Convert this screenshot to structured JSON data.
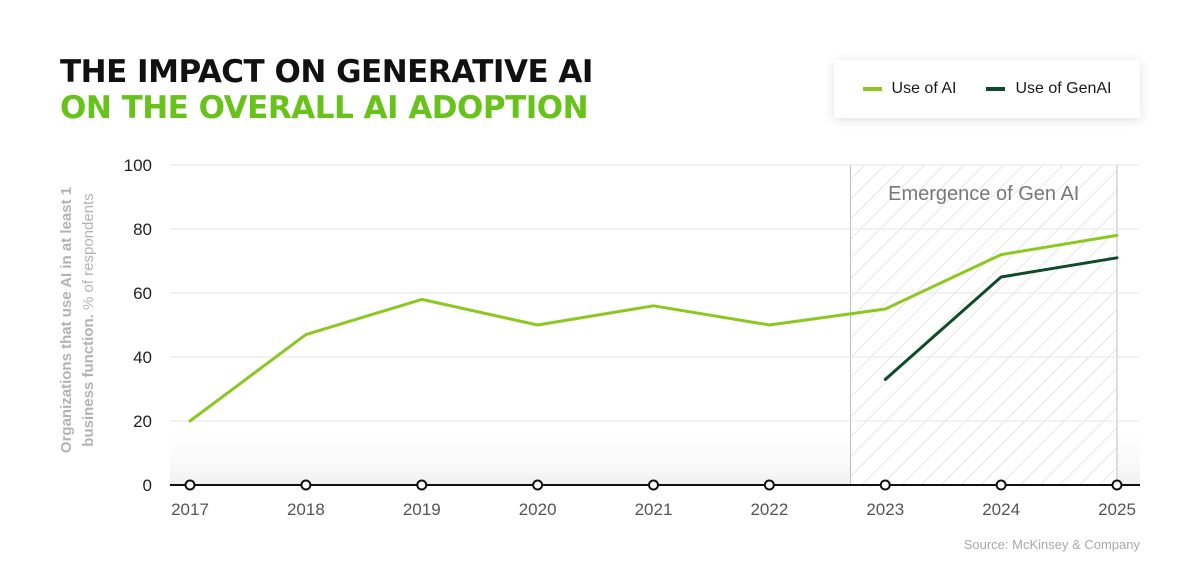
{
  "title": {
    "line1": "THE IMPACT ON GENERATIVE AI",
    "line2": "ON THE OVERALL AI ADOPTION"
  },
  "legend": [
    {
      "label": "Use of AI",
      "color": "#8cc820"
    },
    {
      "label": "Use of GenAI",
      "color": "#0e4b2b"
    }
  ],
  "y_axis_label": {
    "bold_part": "Organizations that use AI in at least 1 business function.",
    "light_part": "% of respondents"
  },
  "source": "Source: McKinsey & Company",
  "chart_data": {
    "type": "line",
    "x": [
      "2017",
      "2018",
      "2019",
      "2020",
      "2021",
      "2022",
      "2023",
      "2024",
      "2025"
    ],
    "series": [
      {
        "name": "Use of AI",
        "color": "#8cc820",
        "values": [
          20,
          47,
          58,
          50,
          56,
          50,
          55,
          72,
          78
        ]
      },
      {
        "name": "Use of GenAI",
        "color": "#0e4b2b",
        "values": [
          null,
          null,
          null,
          null,
          null,
          null,
          33,
          65,
          71
        ]
      }
    ],
    "ylim": [
      0,
      100
    ],
    "yticks": [
      0,
      20,
      40,
      60,
      80,
      100
    ],
    "annotation": {
      "label": "Emergence of Gen AI",
      "x_start": "2022.7",
      "x_end": "2025"
    },
    "grid": true,
    "legend_position": "top-right"
  }
}
